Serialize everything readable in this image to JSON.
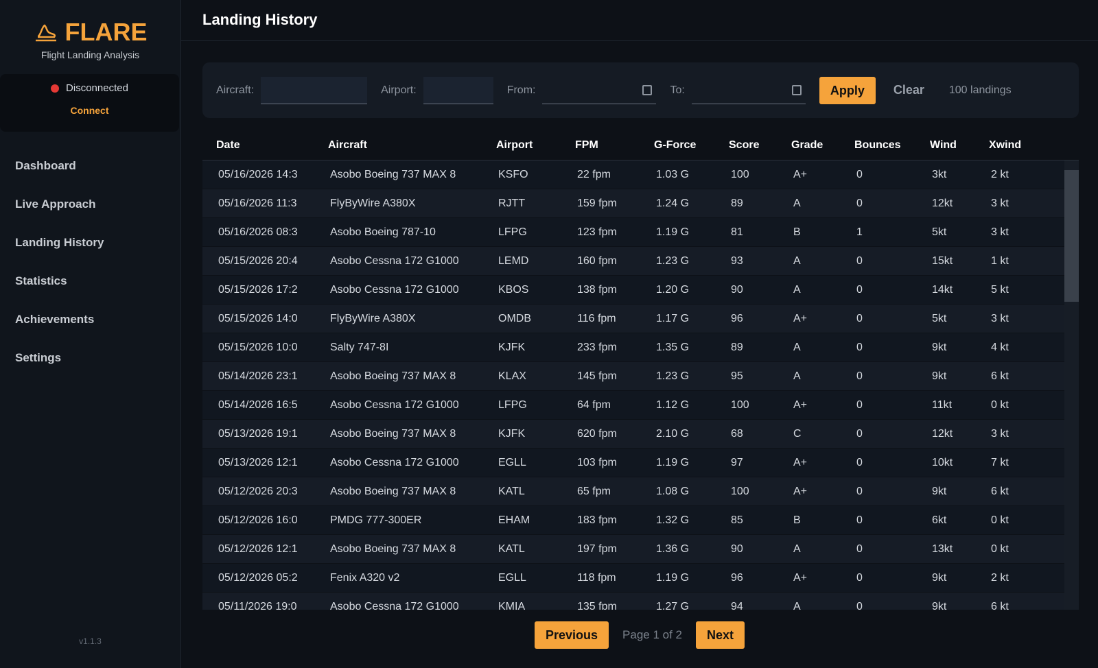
{
  "sidebar": {
    "logo": "FLARE",
    "subtitle": "Flight Landing Analysis",
    "status": "Disconnected",
    "connect": "Connect",
    "nav": [
      "Dashboard",
      "Live Approach",
      "Landing History",
      "Statistics",
      "Achievements",
      "Settings"
    ],
    "version": "v1.1.3"
  },
  "header": {
    "title": "Landing History"
  },
  "filters": {
    "aircraft_label": "Aircraft:",
    "airport_label": "Airport:",
    "from_label": "From:",
    "to_label": "To:",
    "apply": "Apply",
    "clear": "Clear",
    "count": "100 landings"
  },
  "table": {
    "headers": [
      "Date",
      "Aircraft",
      "Airport",
      "FPM",
      "G-Force",
      "Score",
      "Grade",
      "Bounces",
      "Wind",
      "Xwind"
    ],
    "rows": [
      [
        "05/16/2026 14:3",
        "Asobo Boeing 737 MAX 8",
        "KSFO",
        "22 fpm",
        "1.03 G",
        "100",
        "A+",
        "0",
        "3kt",
        "2 kt"
      ],
      [
        "05/16/2026 11:3",
        "FlyByWire A380X",
        "RJTT",
        "159 fpm",
        "1.24 G",
        "89",
        "A",
        "0",
        "12kt",
        "3 kt"
      ],
      [
        "05/16/2026 08:3",
        "Asobo Boeing 787-10",
        "LFPG",
        "123 fpm",
        "1.19 G",
        "81",
        "B",
        "1",
        "5kt",
        "3 kt"
      ],
      [
        "05/15/2026 20:4",
        "Asobo Cessna 172 G1000",
        "LEMD",
        "160 fpm",
        "1.23 G",
        "93",
        "A",
        "0",
        "15kt",
        "1 kt"
      ],
      [
        "05/15/2026 17:2",
        "Asobo Cessna 172 G1000",
        "KBOS",
        "138 fpm",
        "1.20 G",
        "90",
        "A",
        "0",
        "14kt",
        "5 kt"
      ],
      [
        "05/15/2026 14:0",
        "FlyByWire A380X",
        "OMDB",
        "116 fpm",
        "1.17 G",
        "96",
        "A+",
        "0",
        "5kt",
        "3 kt"
      ],
      [
        "05/15/2026 10:0",
        "Salty 747-8I",
        "KJFK",
        "233 fpm",
        "1.35 G",
        "89",
        "A",
        "0",
        "9kt",
        "4 kt"
      ],
      [
        "05/14/2026 23:1",
        "Asobo Boeing 737 MAX 8",
        "KLAX",
        "145 fpm",
        "1.23 G",
        "95",
        "A",
        "0",
        "9kt",
        "6 kt"
      ],
      [
        "05/14/2026 16:5",
        "Asobo Cessna 172 G1000",
        "LFPG",
        "64 fpm",
        "1.12 G",
        "100",
        "A+",
        "0",
        "11kt",
        "0 kt"
      ],
      [
        "05/13/2026 19:1",
        "Asobo Boeing 737 MAX 8",
        "KJFK",
        "620 fpm",
        "2.10 G",
        "68",
        "C",
        "0",
        "12kt",
        "3 kt"
      ],
      [
        "05/13/2026 12:1",
        "Asobo Cessna 172 G1000",
        "EGLL",
        "103 fpm",
        "1.19 G",
        "97",
        "A+",
        "0",
        "10kt",
        "7 kt"
      ],
      [
        "05/12/2026 20:3",
        "Asobo Boeing 737 MAX 8",
        "KATL",
        "65 fpm",
        "1.08 G",
        "100",
        "A+",
        "0",
        "9kt",
        "6 kt"
      ],
      [
        "05/12/2026 16:0",
        "PMDG 777-300ER",
        "EHAM",
        "183 fpm",
        "1.32 G",
        "85",
        "B",
        "0",
        "6kt",
        "0 kt"
      ],
      [
        "05/12/2026 12:1",
        "Asobo Boeing 737 MAX 8",
        "KATL",
        "197 fpm",
        "1.36 G",
        "90",
        "A",
        "0",
        "13kt",
        "0 kt"
      ],
      [
        "05/12/2026 05:2",
        "Fenix A320 v2",
        "EGLL",
        "118 fpm",
        "1.19 G",
        "96",
        "A+",
        "0",
        "9kt",
        "2 kt"
      ],
      [
        "05/11/2026 19:0",
        "Asobo Cessna 172 G1000",
        "KMIA",
        "135 fpm",
        "1.27 G",
        "94",
        "A",
        "0",
        "9kt",
        "6 kt"
      ]
    ]
  },
  "pagination": {
    "previous": "Previous",
    "page": "Page 1 of 2",
    "next": "Next"
  }
}
